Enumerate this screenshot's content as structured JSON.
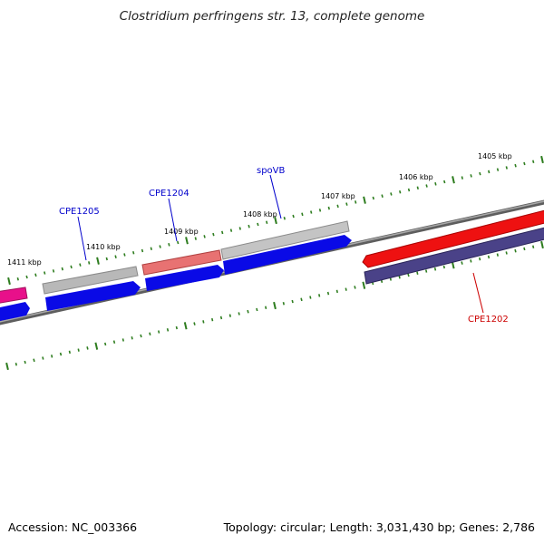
{
  "title": "Clostridium perfringens str. 13, complete genome",
  "accession": "Accession: NC_003366",
  "summary": "Topology: circular; Length: 3,031,430 bp; Genes: 2,786",
  "colors": {
    "backbone": "#7a7a7a",
    "tick": "#2e7d1f",
    "forward_label": "#0000cc",
    "reverse_label": "#cc0000",
    "cds_blue": "#0a0ae6",
    "gene_gray": "#b8b8b8",
    "gene_red_light": "#e87272",
    "gene_red": "#ee1111",
    "gene_purple": "#4a4288",
    "gene_pink": "#e8108a"
  },
  "ticks": [
    {
      "label": "1405 kbp"
    },
    {
      "label": "1406 kbp"
    },
    {
      "label": "1407 kbp"
    },
    {
      "label": "1408 kbp"
    },
    {
      "label": "1409 kbp"
    },
    {
      "label": "1410 kbp"
    },
    {
      "label": "1411 kbp"
    }
  ],
  "gene_labels": [
    {
      "label": "spoVB",
      "strand": "forward"
    },
    {
      "label": "CPE1204",
      "strand": "forward"
    },
    {
      "label": "CPE1205",
      "strand": "forward"
    },
    {
      "label": "CPE1202",
      "strand": "reverse"
    }
  ]
}
